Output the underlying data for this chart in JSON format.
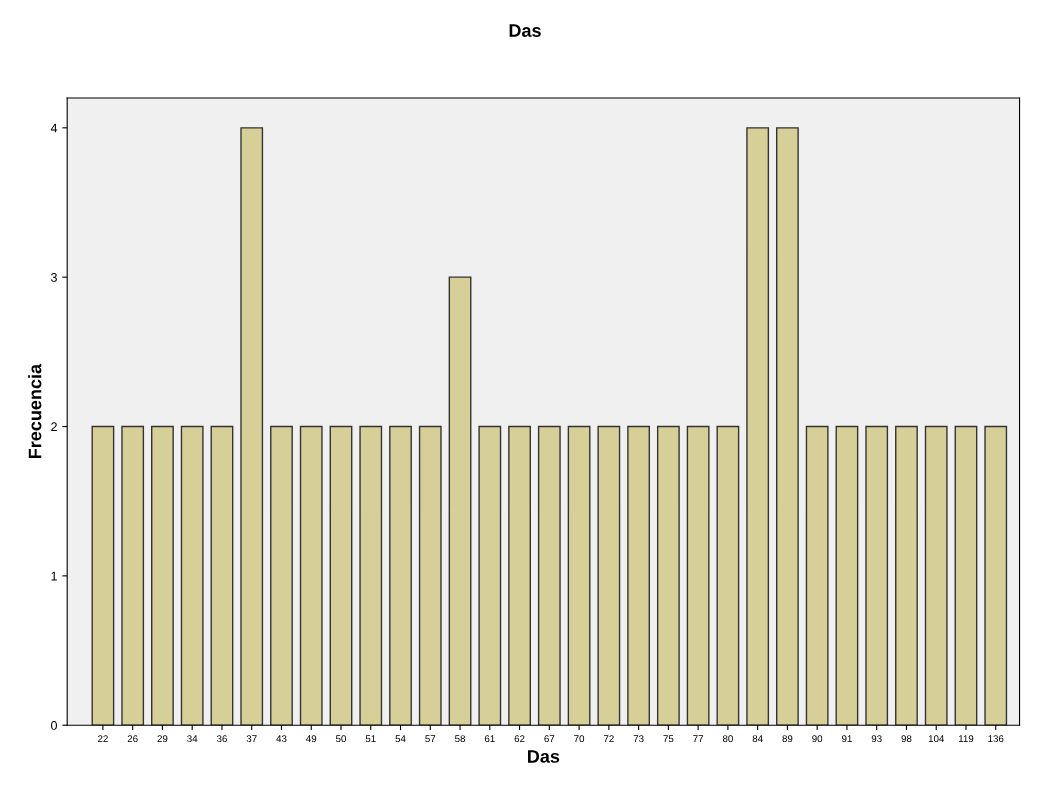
{
  "chart_data": {
    "type": "bar",
    "title": "Das",
    "xlabel": "Das",
    "ylabel": "Frecuencia",
    "categories": [
      "22",
      "26",
      "29",
      "34",
      "36",
      "37",
      "43",
      "49",
      "50",
      "51",
      "54",
      "57",
      "58",
      "61",
      "62",
      "67",
      "70",
      "72",
      "73",
      "75",
      "77",
      "80",
      "84",
      "89",
      "90",
      "91",
      "93",
      "98",
      "104",
      "119",
      "136"
    ],
    "values": [
      2,
      2,
      2,
      2,
      2,
      4,
      2,
      2,
      2,
      2,
      2,
      2,
      3,
      2,
      2,
      2,
      2,
      2,
      2,
      2,
      2,
      2,
      4,
      4,
      2,
      2,
      2,
      2,
      2,
      2,
      2
    ],
    "color": "#d6cf98",
    "ylim": [
      0,
      4.2
    ],
    "yticks": [
      0,
      1,
      2,
      3,
      4
    ],
    "grid": false,
    "legend": false
  }
}
